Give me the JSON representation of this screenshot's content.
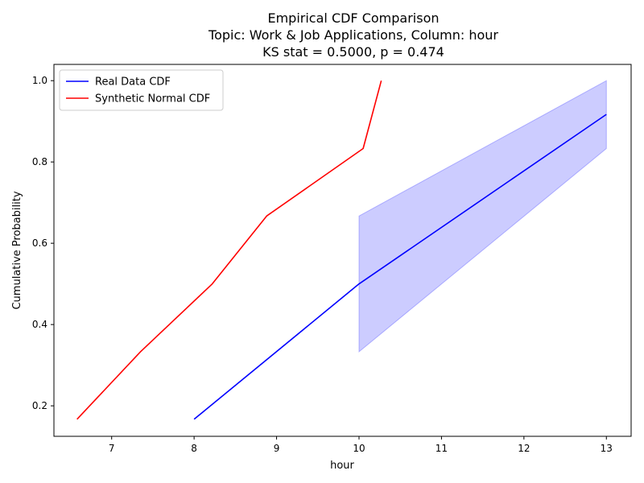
{
  "chart_data": {
    "type": "line",
    "title_lines": [
      "Empirical CDF Comparison",
      "Topic: Work & Job Applications, Column: hour",
      "KS stat = 0.5000, p = 0.474"
    ],
    "xlabel": "hour",
    "ylabel": "Cumulative Probability",
    "xlim": [
      6.3,
      13.3
    ],
    "ylim": [
      0.125,
      1.04
    ],
    "xticks": [
      7,
      8,
      9,
      10,
      11,
      12,
      13
    ],
    "yticks": [
      0.2,
      0.4,
      0.6,
      0.8,
      1.0
    ],
    "ytick_labels": [
      "0.2",
      "0.4",
      "0.6",
      "0.8",
      "1.0"
    ],
    "grid": false,
    "legend_position": "top-left",
    "series": [
      {
        "name": "Real Data CDF",
        "color": "#0000ff",
        "x": [
          8,
          10,
          13
        ],
        "y": [
          0.167,
          0.5,
          0.917
        ]
      },
      {
        "name": "Synthetic Normal CDF",
        "color": "#ff0000",
        "x": [
          6.58,
          7.35,
          8.22,
          8.88,
          10.05,
          10.27
        ],
        "y": [
          0.167,
          0.333,
          0.5,
          0.667,
          0.833,
          1.0
        ]
      }
    ],
    "band": {
      "color": "#0000ff",
      "opacity": 0.2,
      "x": [
        10,
        13
      ],
      "lower": [
        0.333,
        0.833
      ],
      "upper": [
        0.667,
        1.0
      ]
    }
  }
}
